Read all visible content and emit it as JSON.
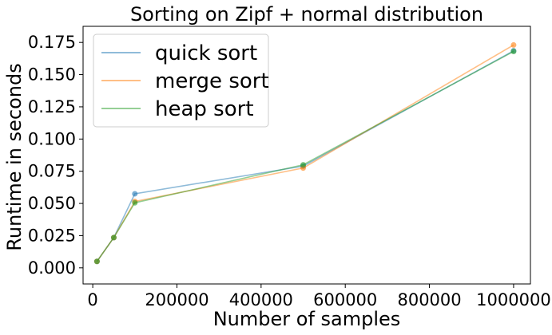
{
  "chart_data": {
    "type": "line",
    "title": "Sorting on Zipf + normal distribution",
    "xlabel": "Number of samples",
    "ylabel": "Runtime in seconds",
    "xlim": [
      -23000,
      1040000
    ],
    "ylim": [
      -0.0125,
      0.1875
    ],
    "xticks": [
      0,
      200000,
      400000,
      600000,
      800000,
      1000000
    ],
    "xtick_labels": [
      "0",
      "200000",
      "400000",
      "600000",
      "800000",
      "1000000"
    ],
    "yticks": [
      0.0,
      0.025,
      0.05,
      0.075,
      0.1,
      0.125,
      0.15,
      0.175
    ],
    "ytick_labels": [
      "0.000",
      "0.025",
      "0.050",
      "0.075",
      "0.100",
      "0.125",
      "0.150",
      "0.175"
    ],
    "grid": false,
    "legend_position": "top-left",
    "x": [
      10000,
      50000,
      100000,
      500000,
      1000000
    ],
    "series": [
      {
        "name": "quick sort",
        "color": "#1f77b4",
        "values": [
          0.005,
          0.0235,
          0.0575,
          0.079,
          0.1685
        ]
      },
      {
        "name": "merge sort",
        "color": "#ff7f0e",
        "values": [
          0.005,
          0.0235,
          0.0515,
          0.0775,
          0.173
        ]
      },
      {
        "name": "heap sort",
        "color": "#2ca02c",
        "values": [
          0.005,
          0.0235,
          0.0505,
          0.08,
          0.168
        ]
      }
    ]
  }
}
